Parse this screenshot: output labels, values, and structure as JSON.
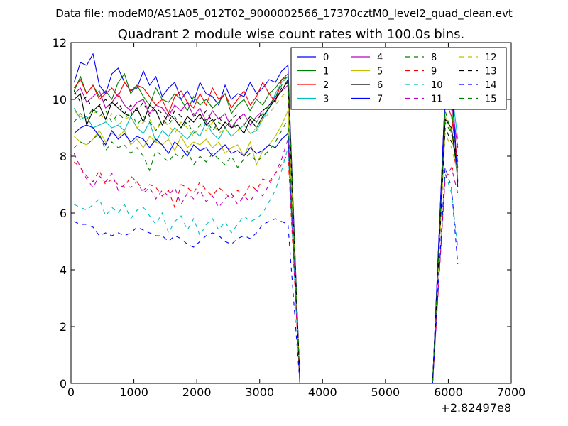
{
  "chart_data": {
    "type": "line",
    "suptitle": "Data file: modeM0/AS1A05_012T02_9000002566_17370cztM0_level2_quad_clean.evt",
    "title": "Quadrant 2 module wise count rates with 100.0s bins.",
    "xlabel": "",
    "ylabel": "",
    "x_offset_label": "+2.82497e8",
    "xlim": [
      0,
      7000
    ],
    "ylim": [
      0,
      12
    ],
    "xticks": [
      0,
      1000,
      2000,
      3000,
      4000,
      5000,
      6000,
      7000
    ],
    "yticks": [
      0,
      2,
      4,
      6,
      8,
      10,
      12
    ],
    "legend": {
      "position": "top-right",
      "columns": 4
    },
    "series": [
      {
        "name": "0",
        "color": "#0000ff",
        "dash": "solid",
        "values": [
          10.6,
          11.3,
          11.2,
          11.6,
          10.5,
          10.2,
          10.9,
          11.1,
          10.6,
          10.3,
          10.4,
          11.0,
          10.5,
          10.8,
          10.1,
          10.4,
          10.6,
          10.0,
          10.3,
          9.9,
          10.6,
          10.2,
          10.1,
          9.8,
          10.5,
          10.0,
          10.2,
          10.1,
          10.6,
          10.2,
          10.4,
          10.7,
          10.6,
          11.0,
          11.2
        ]
      },
      {
        "name": "1",
        "color": "#008000",
        "dash": "solid",
        "values": [
          10.3,
          10.8,
          10.2,
          10.5,
          10.1,
          10.3,
          10.0,
          10.6,
          10.9,
          10.2,
          10.5,
          10.1,
          9.8,
          10.4,
          10.0,
          9.9,
          10.2,
          10.0,
          9.6,
          10.1,
          9.8,
          10.0,
          9.7,
          9.9,
          10.2,
          9.5,
          9.8,
          10.0,
          9.6,
          10.0,
          9.8,
          10.2,
          10.4,
          10.7,
          10.8
        ]
      },
      {
        "name": "2",
        "color": "#ff0000",
        "dash": "solid",
        "values": [
          10.4,
          10.7,
          10.2,
          10.5,
          10.0,
          10.2,
          10.4,
          10.1,
          10.6,
          10.3,
          10.5,
          10.4,
          10.1,
          9.8,
          10.0,
          9.5,
          10.1,
          10.3,
          9.9,
          9.7,
          10.2,
          9.8,
          10.4,
          10.0,
          10.2,
          9.7,
          10.0,
          10.3,
          9.8,
          10.1,
          10.6,
          10.2,
          9.9,
          10.7,
          10.9
        ]
      },
      {
        "name": "3",
        "color": "#00bfbf",
        "dash": "solid",
        "values": [
          9.7,
          9.3,
          9.4,
          9.0,
          9.1,
          9.2,
          9.0,
          9.1,
          8.9,
          9.4,
          9.0,
          8.8,
          9.2,
          8.5,
          8.9,
          8.7,
          9.0,
          8.8,
          8.6,
          8.9,
          8.7,
          9.2,
          8.8,
          8.6,
          9.0,
          8.7,
          8.9,
          9.1,
          8.8,
          8.9,
          9.3,
          9.7,
          10.2,
          10.6,
          10.8
        ]
      },
      {
        "name": "4",
        "color": "#bf00bf",
        "dash": "solid",
        "values": [
          10.2,
          10.4,
          9.9,
          10.1,
          10.3,
          9.7,
          9.9,
          10.2,
          9.8,
          9.6,
          9.9,
          10.0,
          9.5,
          9.8,
          9.7,
          9.4,
          9.8,
          9.6,
          9.9,
          9.4,
          9.7,
          9.2,
          9.6,
          9.3,
          9.5,
          9.0,
          9.3,
          9.5,
          9.1,
          9.4,
          9.6,
          9.8,
          10.1,
          10.3,
          10.5
        ]
      },
      {
        "name": "5",
        "color": "#bfbf00",
        "dash": "solid",
        "values": [
          8.7,
          8.5,
          8.4,
          8.6,
          8.9,
          8.5,
          8.8,
          8.7,
          8.9,
          8.4,
          8.6,
          8.3,
          8.7,
          8.5,
          8.4,
          8.6,
          8.2,
          8.7,
          8.3,
          8.5,
          8.4,
          8.6,
          8.3,
          8.5,
          8.1,
          8.3,
          8.4,
          8.0,
          8.5,
          7.7,
          8.2,
          8.4,
          8.7,
          9.1,
          9.6
        ]
      },
      {
        "name": "6",
        "color": "#000000",
        "dash": "solid",
        "values": [
          10.0,
          10.2,
          9.1,
          9.6,
          9.8,
          9.3,
          9.9,
          9.7,
          9.5,
          9.4,
          9.7,
          9.2,
          9.8,
          9.6,
          9.1,
          9.5,
          9.3,
          9.0,
          9.4,
          9.2,
          9.5,
          9.1,
          9.3,
          8.9,
          9.2,
          9.0,
          9.1,
          8.8,
          9.3,
          9.0,
          9.4,
          9.7,
          10.0,
          10.3,
          10.7
        ]
      },
      {
        "name": "7",
        "color": "#0000ff",
        "dash": "solid",
        "values": [
          8.8,
          9.0,
          9.1,
          9.0,
          8.7,
          8.4,
          8.9,
          8.6,
          8.8,
          8.5,
          8.7,
          8.6,
          8.3,
          8.6,
          8.4,
          8.1,
          8.5,
          8.3,
          8.0,
          8.4,
          8.2,
          8.3,
          8.0,
          8.2,
          8.4,
          8.1,
          8.2,
          8.0,
          8.3,
          8.1,
          8.2,
          8.4,
          8.3,
          8.6,
          8.8
        ]
      },
      {
        "name": "8",
        "color": "#008000",
        "dash": "dashed",
        "values": [
          8.3,
          8.5,
          8.4,
          8.6,
          8.8,
          8.2,
          8.5,
          8.3,
          8.4,
          8.1,
          8.3,
          8.0,
          7.5,
          8.2,
          8.0,
          7.8,
          8.1,
          7.9,
          8.2,
          7.7,
          8.0,
          7.8,
          8.1,
          7.9,
          7.7,
          8.0,
          7.6,
          7.9,
          8.1,
          7.8,
          8.0,
          8.2,
          8.5,
          8.9,
          9.3
        ]
      },
      {
        "name": "9",
        "color": "#ff0000",
        "dash": "dashed",
        "values": [
          7.8,
          7.6,
          7.3,
          7.1,
          7.5,
          7.0,
          7.2,
          7.0,
          6.9,
          7.3,
          7.1,
          6.8,
          7.0,
          6.9,
          6.6,
          6.8,
          6.2,
          7.0,
          6.9,
          6.7,
          7.1,
          6.8,
          6.6,
          6.9,
          6.7,
          6.5,
          6.8,
          6.6,
          7.0,
          6.8,
          7.2,
          7.1,
          7.4,
          7.7,
          8.1
        ]
      },
      {
        "name": "10",
        "color": "#00bfbf",
        "dash": "dashed",
        "values": [
          6.3,
          6.2,
          6.1,
          6.3,
          6.5,
          5.9,
          6.2,
          6.0,
          6.3,
          5.8,
          6.1,
          6.2,
          5.9,
          5.6,
          6.0,
          5.3,
          5.7,
          5.9,
          5.4,
          5.8,
          5.2,
          5.6,
          5.8,
          5.4,
          5.7,
          5.3,
          5.6,
          5.9,
          5.7,
          5.8,
          6.0,
          6.4,
          6.8,
          7.5,
          8.3
        ]
      },
      {
        "name": "11",
        "color": "#bf00bf",
        "dash": "dashed",
        "values": [
          8.1,
          7.6,
          7.2,
          6.9,
          7.3,
          7.1,
          7.4,
          6.8,
          7.0,
          6.9,
          7.1,
          6.7,
          6.9,
          6.5,
          6.8,
          6.6,
          6.9,
          6.3,
          6.7,
          6.5,
          6.8,
          6.4,
          6.6,
          6.2,
          6.5,
          6.7,
          6.3,
          6.6,
          6.4,
          6.8,
          6.6,
          7.0,
          7.4,
          7.9,
          8.6
        ]
      },
      {
        "name": "12",
        "color": "#bfbf00",
        "dash": "dashed",
        "values": [
          9.6,
          9.4,
          9.3,
          9.5,
          9.6,
          9.2,
          9.5,
          9.1,
          9.3,
          9.4,
          9.0,
          9.2,
          9.3,
          8.9,
          9.2,
          9.1,
          8.8,
          9.2,
          9.0,
          8.7,
          9.1,
          8.9,
          9.2,
          8.8,
          9.0,
          8.7,
          8.9,
          9.1,
          8.8,
          9.0,
          9.3,
          9.5,
          9.8,
          10.1,
          10.3
        ]
      },
      {
        "name": "13",
        "color": "#000000",
        "dash": "dashed",
        "values": [
          10.3,
          9.9,
          10.1,
          9.6,
          9.8,
          10.0,
          9.7,
          9.9,
          9.5,
          9.8,
          9.6,
          9.9,
          9.4,
          9.7,
          9.5,
          9.2,
          9.6,
          9.4,
          9.1,
          9.5,
          9.3,
          9.6,
          9.2,
          9.4,
          9.0,
          9.3,
          9.5,
          9.1,
          9.4,
          9.2,
          9.6,
          9.8,
          10.0,
          10.4,
          10.6
        ]
      },
      {
        "name": "14",
        "color": "#0000ff",
        "dash": "dashed",
        "values": [
          5.7,
          5.6,
          5.6,
          5.5,
          5.2,
          5.3,
          5.2,
          5.3,
          5.2,
          5.3,
          5.5,
          5.4,
          5.3,
          5.2,
          5.2,
          5.0,
          5.2,
          5.1,
          4.9,
          4.8,
          5.0,
          5.2,
          5.3,
          5.2,
          5.0,
          4.9,
          5.1,
          5.2,
          5.1,
          5.3,
          5.6,
          5.7,
          5.8,
          5.7,
          5.6
        ]
      },
      {
        "name": "15",
        "color": "#008000",
        "dash": "dashed",
        "values": [
          9.2,
          9.5,
          9.3,
          9.7,
          9.4,
          9.6,
          9.2,
          9.5,
          9.3,
          9.6,
          9.1,
          9.4,
          9.2,
          8.9,
          9.3,
          9.1,
          9.4,
          9.0,
          9.2,
          8.8,
          9.1,
          9.3,
          8.9,
          9.2,
          9.0,
          9.3,
          8.9,
          9.1,
          9.4,
          9.2,
          9.5,
          9.8,
          10.1,
          10.5,
          10.9
        ]
      }
    ],
    "x_start": 50,
    "x_step": 100,
    "gap": {
      "drop_x": 3640,
      "zero_until": 5750,
      "rise_to": 5950
    },
    "tail": {
      "x": [
        5950,
        6050,
        6150
      ],
      "values": [
        [
          10.2,
          10.9,
          7.1
        ],
        [
          9.8,
          9.7,
          7.6
        ],
        [
          10.0,
          9.4,
          7.8
        ],
        [
          9.9,
          10.4,
          8.6
        ],
        [
          10.1,
          9.9,
          8.3
        ],
        [
          9.4,
          8.9,
          7.2
        ],
        [
          9.3,
          9.0,
          7.4
        ],
        [
          10.1,
          10.7,
          6.9
        ],
        [
          9.2,
          8.8,
          7.3
        ],
        [
          7.3,
          7.4,
          8.3
        ],
        [
          7.4,
          6.7,
          4.8
        ],
        [
          7.2,
          7.6,
          6.7
        ],
        [
          8.8,
          8.3,
          7.4
        ],
        [
          9.0,
          8.5,
          8.0
        ],
        [
          7.6,
          6.9,
          4.2
        ],
        [
          9.6,
          8.8,
          8.4
        ]
      ]
    }
  }
}
